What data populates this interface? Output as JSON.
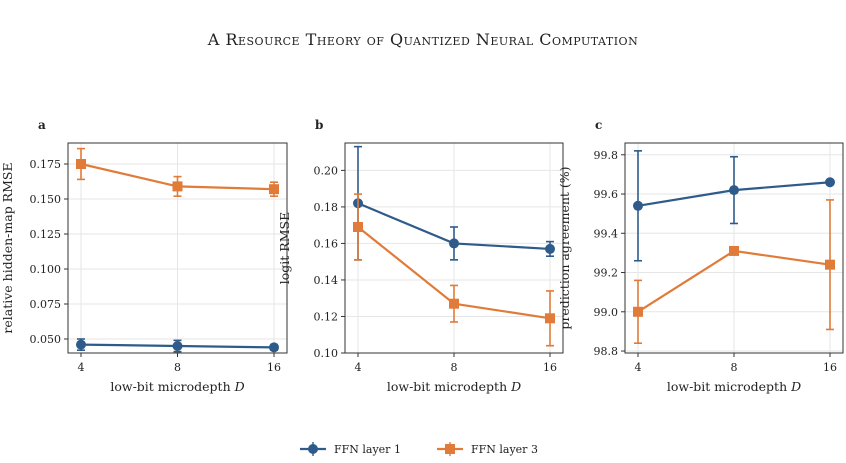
{
  "title": "A Resource Theory of Quantized Neural Computation",
  "colors": {
    "series1": "#2e5b8a",
    "series2": "#e07b39"
  },
  "legend": {
    "items": [
      "FFN layer 1",
      "FFN layer 3"
    ],
    "placement": "bottom-center"
  },
  "chart_data": [
    {
      "type": "line",
      "panel": "a",
      "xlabel": "low-bit microdepth D",
      "ylabel": "relative hidden-map RMSE",
      "x": [
        4,
        8,
        16
      ],
      "x_scale": "log2",
      "yticks": [
        "0.050",
        "0.075",
        "0.100",
        "0.125",
        "0.150",
        "0.175"
      ],
      "ylim": [
        0.04,
        0.19
      ],
      "grid": true,
      "series": [
        {
          "name": "FFN layer 1",
          "marker": "circle",
          "values": [
            0.046,
            0.045,
            0.044
          ],
          "err": [
            0.004,
            0.004,
            0.002
          ]
        },
        {
          "name": "FFN layer 3",
          "marker": "square",
          "values": [
            0.175,
            0.159,
            0.157
          ],
          "err": [
            0.011,
            0.007,
            0.005
          ]
        }
      ]
    },
    {
      "type": "line",
      "panel": "b",
      "xlabel": "low-bit microdepth D",
      "ylabel": "logit RMSE",
      "x": [
        4,
        8,
        16
      ],
      "x_scale": "log2",
      "yticks": [
        "0.10",
        "0.12",
        "0.14",
        "0.16",
        "0.18",
        "0.20"
      ],
      "ylim": [
        0.1,
        0.215
      ],
      "grid": true,
      "series": [
        {
          "name": "FFN layer 1",
          "marker": "circle",
          "values": [
            0.182,
            0.16,
            0.157
          ],
          "err": [
            0.031,
            0.009,
            0.004
          ]
        },
        {
          "name": "FFN layer 3",
          "marker": "square",
          "values": [
            0.169,
            0.127,
            0.119
          ],
          "err": [
            0.018,
            0.01,
            0.015
          ]
        }
      ]
    },
    {
      "type": "line",
      "panel": "c",
      "xlabel": "low-bit microdepth D",
      "ylabel": "prediction agreement (%)",
      "x": [
        4,
        8,
        16
      ],
      "x_scale": "log2",
      "yticks": [
        "98.8",
        "99.0",
        "99.2",
        "99.4",
        "99.6",
        "99.8"
      ],
      "ylim": [
        98.79,
        99.86
      ],
      "grid": true,
      "series": [
        {
          "name": "FFN layer 1",
          "marker": "circle",
          "values": [
            99.54,
            99.62,
            99.66
          ],
          "err": [
            0.28,
            0.17,
            0.0
          ]
        },
        {
          "name": "FFN layer 3",
          "marker": "square",
          "values": [
            99.0,
            99.31,
            99.24
          ],
          "err": [
            0.16,
            0.0,
            0.33
          ]
        }
      ]
    }
  ]
}
